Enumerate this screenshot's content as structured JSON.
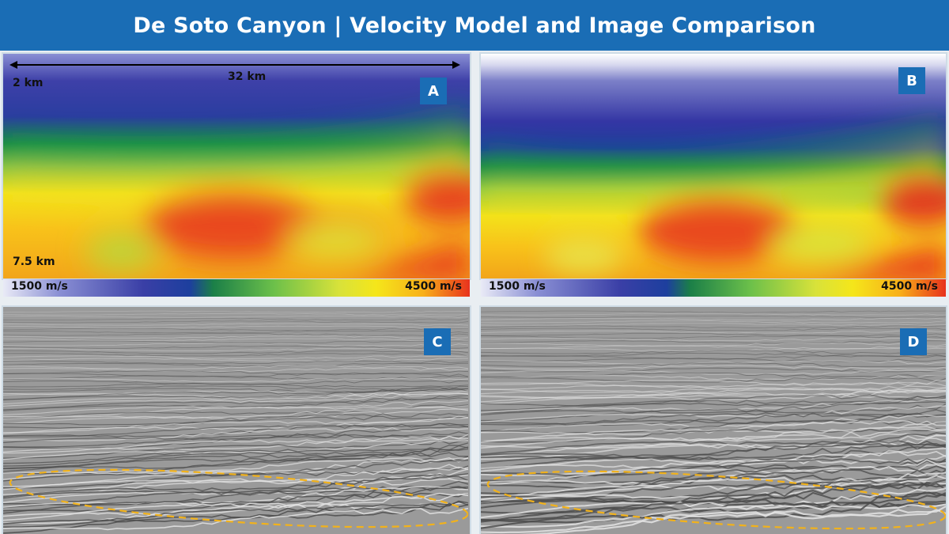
{
  "header": {
    "title": "De Soto Canyon | Velocity Model and Image Comparison"
  },
  "panels": {
    "a": {
      "tag": "A",
      "top_depth": "2 km",
      "bottom_depth": "7.5 km",
      "scale_label": "32 km"
    },
    "b": {
      "tag": "B"
    },
    "c": {
      "tag": "C"
    },
    "d": {
      "tag": "D"
    }
  },
  "colorbar": {
    "min_label": "1500 m/s",
    "max_label": "4500 m/s"
  },
  "colors": {
    "header_bg": "#1a6db5",
    "tag_bg": "#1a6db5",
    "highlight_ellipse": "#f2b21b",
    "velocity_scale": [
      "#8a8fd0",
      "#3c3fa8",
      "#1f3aa0",
      "#1b8a3b",
      "#6fc04a",
      "#f4e51b",
      "#f7a51c",
      "#e8321d"
    ]
  }
}
